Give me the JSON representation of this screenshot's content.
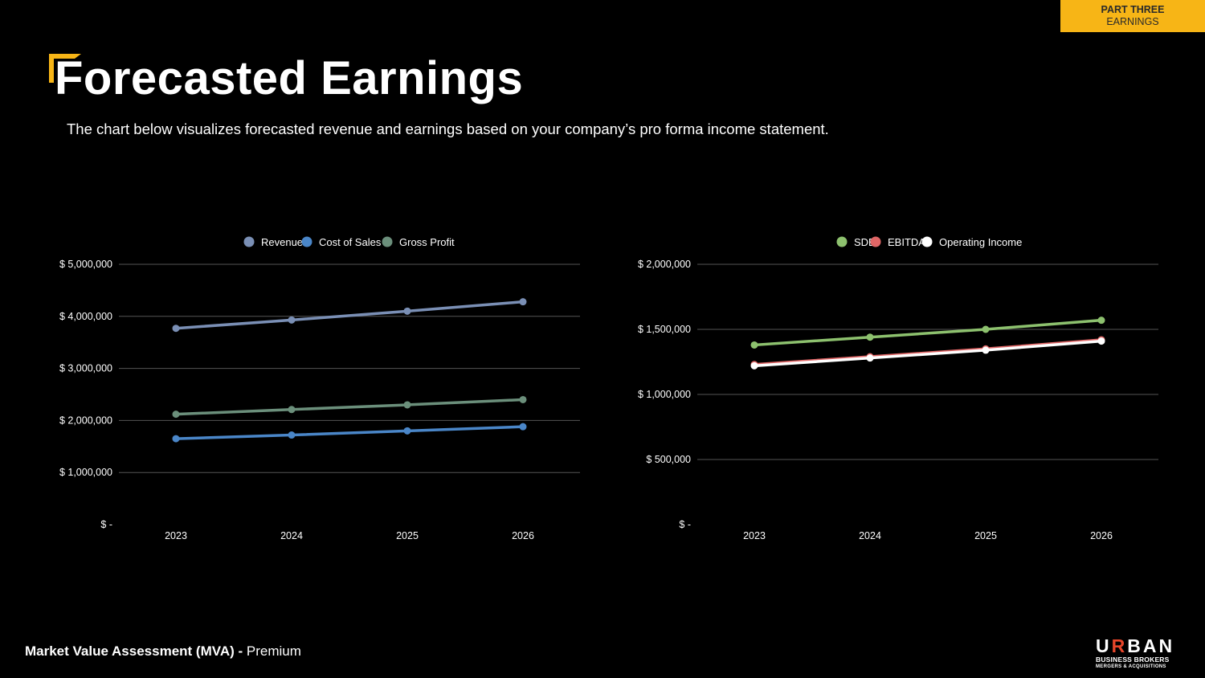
{
  "badge": {
    "line1": "PART THREE",
    "line2": "EARNINGS"
  },
  "page": {
    "title": "Forecasted Earnings",
    "subtitle": "The chart below visualizes forecasted revenue and earnings based on your company’s pro forma income statement."
  },
  "footer": {
    "bold": "Market Value Assessment (MVA) -",
    "normal": " Premium"
  },
  "logo": {
    "brand_a": "U",
    "brand_accent": "R",
    "brand_b": "BAN",
    "line2": "BUSINESS BROKERS",
    "line3": "MERGERS & ACQUISITIONS"
  },
  "colors": {
    "accent": "#f7b516",
    "logo_accent": "#e8462a"
  },
  "chart_data": [
    {
      "type": "line",
      "categories": [
        "2023",
        "2024",
        "2025",
        "2026"
      ],
      "ylim": [
        0,
        5000000
      ],
      "yticks": [
        0,
        1000000,
        2000000,
        3000000,
        4000000,
        5000000
      ],
      "ytick_labels": [
        "$ -",
        "$ 1,000,000",
        "$ 2,000,000",
        "$ 3,000,000",
        "$ 4,000,000",
        "$ 5,000,000"
      ],
      "grid": true,
      "legend": "top",
      "series": [
        {
          "name": "Revenue",
          "color": "#7a8fb5",
          "values": [
            3770000,
            3930000,
            4100000,
            4280000
          ]
        },
        {
          "name": "Cost of Sales",
          "color": "#4a86c8",
          "values": [
            1650000,
            1720000,
            1800000,
            1880000
          ]
        },
        {
          "name": "Gross Profit",
          "color": "#6b8f7b",
          "values": [
            2120000,
            2210000,
            2300000,
            2400000
          ]
        }
      ]
    },
    {
      "type": "line",
      "categories": [
        "2023",
        "2024",
        "2025",
        "2026"
      ],
      "ylim": [
        0,
        2000000
      ],
      "yticks": [
        0,
        500000,
        1000000,
        1500000,
        2000000
      ],
      "ytick_labels": [
        "$ -",
        "$ 500,000",
        "$ 1,000,000",
        "$ 1,500,000",
        "$ 2,000,000"
      ],
      "grid": true,
      "legend": "top",
      "series": [
        {
          "name": "SDE",
          "color": "#8dc16e",
          "values": [
            1380000,
            1440000,
            1500000,
            1570000
          ]
        },
        {
          "name": "EBITDA",
          "color": "#e06666",
          "values": [
            1230000,
            1290000,
            1350000,
            1420000
          ]
        },
        {
          "name": "Operating Income",
          "color": "#ffffff",
          "values": [
            1220000,
            1280000,
            1340000,
            1410000
          ]
        }
      ]
    }
  ]
}
